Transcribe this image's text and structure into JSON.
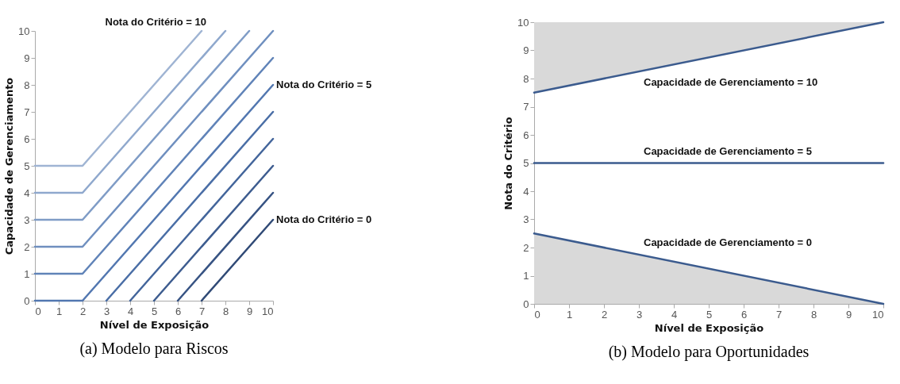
{
  "chart_data": [
    {
      "type": "line",
      "title": "(a)  Modelo para Riscos",
      "xlabel": "Nível de Exposição",
      "ylabel": "Capacidade de Gerenciamento",
      "xlim": [
        0,
        10
      ],
      "ylim": [
        0,
        10
      ],
      "xticks": [
        0,
        1,
        2,
        3,
        4,
        5,
        6,
        7,
        8,
        9,
        10
      ],
      "yticks": [
        0,
        1,
        2,
        3,
        4,
        5,
        6,
        7,
        8,
        9,
        10
      ],
      "grid": false,
      "series": [
        {
          "color": "#9fb4d3",
          "x": [
            0,
            2,
            7
          ],
          "values": [
            5,
            5,
            10
          ]
        },
        {
          "color": "#8fa8cd",
          "x": [
            0,
            2,
            8
          ],
          "values": [
            4,
            4,
            10
          ]
        },
        {
          "color": "#7f9cc6",
          "x": [
            0,
            2,
            9
          ],
          "values": [
            3,
            3,
            10
          ]
        },
        {
          "color": "#6f8fbf",
          "x": [
            0,
            2,
            10
          ],
          "values": [
            2,
            2,
            10
          ]
        },
        {
          "color": "#6083b8",
          "x": [
            0,
            2,
            10
          ],
          "values": [
            1,
            1,
            9
          ]
        },
        {
          "color": "#5277b0",
          "x": [
            0,
            2,
            10
          ],
          "values": [
            0,
            0,
            8
          ]
        },
        {
          "color": "#4a6ea6",
          "x": [
            3,
            10
          ],
          "values": [
            0,
            7
          ]
        },
        {
          "color": "#43659b",
          "x": [
            4,
            10
          ],
          "values": [
            0,
            6
          ]
        },
        {
          "color": "#3d5c8f",
          "x": [
            5,
            10
          ],
          "values": [
            0,
            5
          ]
        },
        {
          "color": "#375383",
          "x": [
            6,
            10
          ],
          "values": [
            0,
            4
          ]
        },
        {
          "color": "#304a76",
          "x": [
            7,
            10
          ],
          "values": [
            0,
            3
          ]
        }
      ],
      "annotations": [
        {
          "text": "Nota do Critério = 10",
          "x": 7,
          "y": 10
        },
        {
          "text": "Nota do Critério = 5",
          "x": 10,
          "y": 8
        },
        {
          "text": "Nota do Critério = 0",
          "x": 10,
          "y": 3
        }
      ]
    },
    {
      "type": "line",
      "title": "(b)  Modelo para Oportunidades",
      "xlabel": "Nível de Exposição",
      "ylabel": "Nota do Critério",
      "xlim": [
        0,
        10
      ],
      "ylim": [
        0,
        10
      ],
      "xticks": [
        0,
        1,
        2,
        3,
        4,
        5,
        6,
        7,
        8,
        9,
        10
      ],
      "yticks": [
        0,
        1,
        2,
        3,
        4,
        5,
        6,
        7,
        8,
        9,
        10
      ],
      "grid": false,
      "series": [
        {
          "color": "#3b5b8e",
          "x": [
            0,
            10
          ],
          "values": [
            7.5,
            10
          ],
          "lower": [
            7.5,
            10
          ],
          "upper": [
            10,
            10
          ]
        },
        {
          "color": "#3b5b8e",
          "x": [
            0,
            10
          ],
          "values": [
            5,
            5
          ]
        },
        {
          "type": "area",
          "color": "#3b5b8e",
          "x": [
            0,
            10
          ],
          "values": [
            2.5,
            0
          ]
        }
      ],
      "annotations": [
        {
          "text": "Capacidade de Gerenciamento = 10",
          "x": 3,
          "y": 8.25
        },
        {
          "text": "Capacidade de Gerenciamento = 5",
          "x": 3,
          "y": 5
        },
        {
          "text": "Capacidade de Gerenciamento = 0",
          "x": 3,
          "y": 1.75
        }
      ]
    }
  ]
}
